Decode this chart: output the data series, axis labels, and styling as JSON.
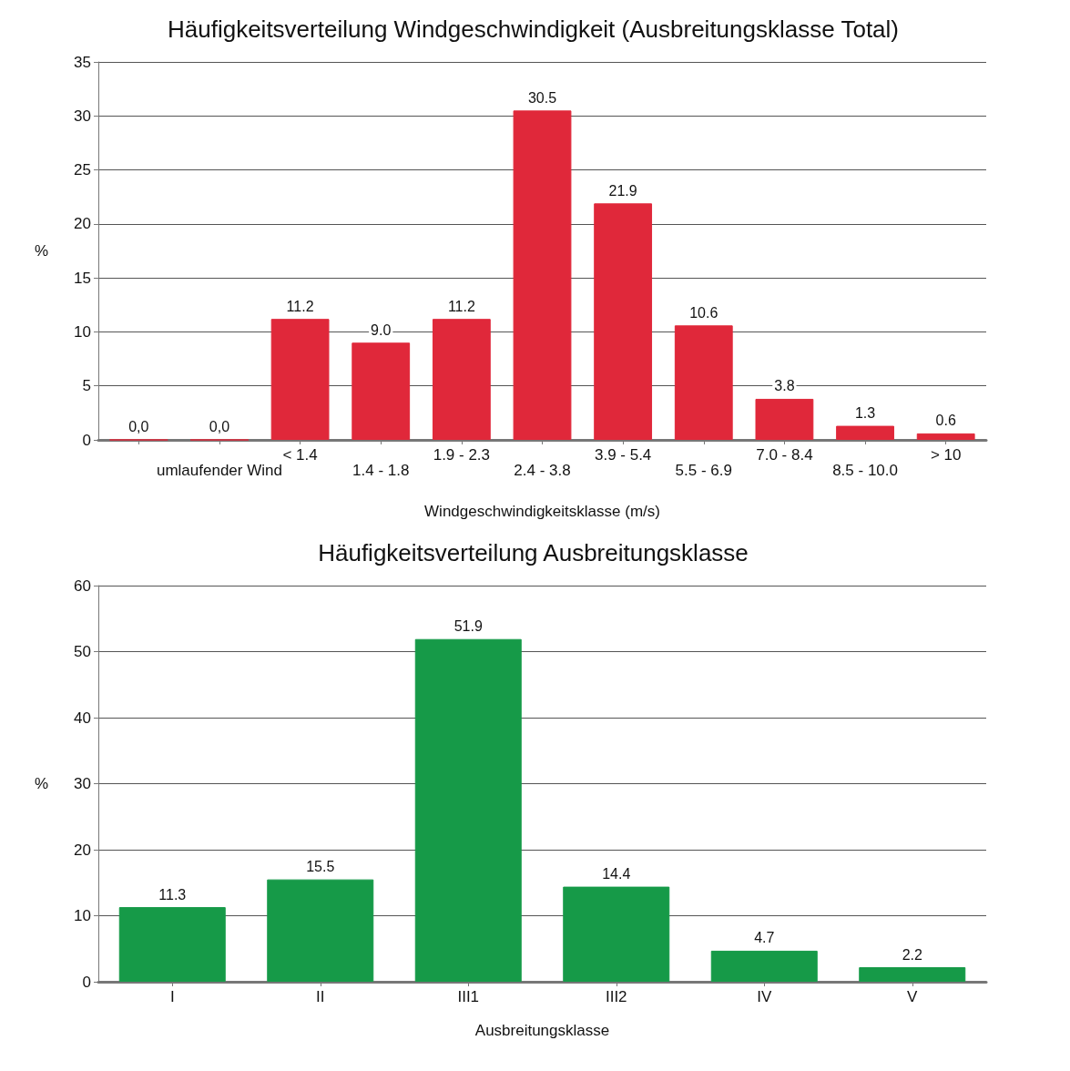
{
  "chart_data": [
    {
      "type": "bar",
      "title": "Häufigkeitsverteilung Windgeschwindigkeit (Ausbreitungsklasse Total)",
      "xlabel": "Windgeschwindigkeitsklasse (m/s)",
      "ylabel": "%",
      "categories": [
        null,
        "umlaufender Wind",
        "< 1.4",
        "1.4 - 1.8",
        "1.9 - 2.3",
        "2.4 - 3.8",
        "3.9 - 5.4",
        "5.5 - 6.9",
        "7.0 - 8.4",
        "8.5 - 10.0",
        "> 10"
      ],
      "values": [
        0.0,
        0.0,
        11.2,
        9.0,
        11.2,
        30.5,
        21.9,
        10.6,
        3.8,
        1.3,
        0.6
      ],
      "value_labels": [
        "0,0",
        "0,0",
        "11.2",
        "9.0",
        "11.2",
        "30.5",
        "21.9",
        "10.6",
        "3.8",
        "1.3",
        "0.6"
      ],
      "color": "#e0283a",
      "ylim": [
        0,
        35
      ],
      "yticks": [
        0,
        5,
        10,
        15,
        20,
        25,
        30,
        35
      ],
      "grid": "y"
    },
    {
      "type": "bar",
      "title": "Häufigkeitsverteilung Ausbreitungsklasse",
      "xlabel": "Ausbreitungsklasse",
      "ylabel": "%",
      "categories": [
        "I",
        "II",
        "III1",
        "III2",
        "IV",
        "V"
      ],
      "values": [
        11.3,
        15.5,
        51.9,
        14.4,
        4.7,
        2.2
      ],
      "data_labels": true,
      "color": "#169a48",
      "ylim": [
        0,
        60
      ],
      "yticks": [
        0,
        10,
        20,
        30,
        40,
        50,
        60
      ],
      "grid": "y"
    }
  ]
}
